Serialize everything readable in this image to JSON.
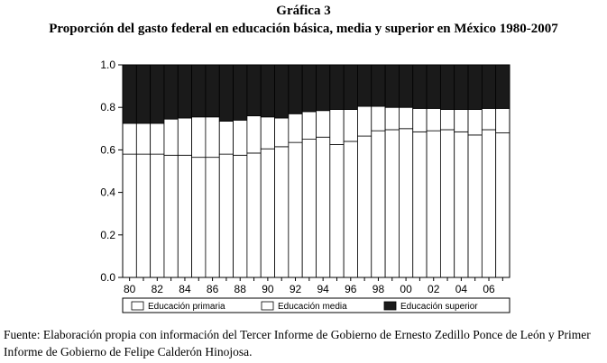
{
  "heading": "Gráfica 3",
  "chart_data": {
    "type": "bar",
    "stacked": true,
    "title": "Proporción del gasto federal en educación básica, media y superior en México 1980-2007",
    "categories": [
      "80",
      "81",
      "82",
      "83",
      "84",
      "85",
      "86",
      "87",
      "88",
      "89",
      "90",
      "91",
      "92",
      "93",
      "94",
      "95",
      "96",
      "97",
      "98",
      "99",
      "00",
      "01",
      "02",
      "03",
      "04",
      "05",
      "06",
      "07"
    ],
    "x_tick_labels": [
      "80",
      "82",
      "84",
      "86",
      "88",
      "90",
      "92",
      "94",
      "96",
      "98",
      "00",
      "02",
      "04",
      "06"
    ],
    "ylim": [
      0,
      1.0
    ],
    "y_ticks": [
      "0.0",
      "0.2",
      "0.4",
      "0.6",
      "0.8",
      "1.0"
    ],
    "series": [
      {
        "name": "Educación primaria",
        "color": "#ffffff",
        "values": [
          0.58,
          0.58,
          0.58,
          0.575,
          0.575,
          0.565,
          0.565,
          0.58,
          0.575,
          0.585,
          0.605,
          0.615,
          0.635,
          0.65,
          0.66,
          0.625,
          0.64,
          0.665,
          0.69,
          0.695,
          0.7,
          0.685,
          0.69,
          0.695,
          0.685,
          0.67,
          0.695,
          0.68
        ]
      },
      {
        "name": "Educación media",
        "color": "#ffffff",
        "values": [
          0.145,
          0.145,
          0.145,
          0.17,
          0.175,
          0.19,
          0.19,
          0.155,
          0.165,
          0.175,
          0.15,
          0.135,
          0.135,
          0.13,
          0.125,
          0.165,
          0.15,
          0.14,
          0.115,
          0.105,
          0.1,
          0.11,
          0.105,
          0.095,
          0.105,
          0.12,
          0.1,
          0.115
        ]
      },
      {
        "name": "Educación superior",
        "color": "#1a1a1a",
        "values": [
          0.275,
          0.275,
          0.275,
          0.255,
          0.25,
          0.245,
          0.245,
          0.265,
          0.26,
          0.24,
          0.245,
          0.25,
          0.23,
          0.22,
          0.215,
          0.21,
          0.21,
          0.195,
          0.195,
          0.2,
          0.2,
          0.205,
          0.205,
          0.21,
          0.21,
          0.21,
          0.205,
          0.205
        ]
      }
    ],
    "legend_position": "bottom",
    "grid": false
  },
  "source_note": "Fuente: Elaboración propia con información del Tercer Informe de Gobierno de Ernesto Zedillo Ponce de León y Primer Informe de Gobierno de Felipe Calderón Hinojosa."
}
